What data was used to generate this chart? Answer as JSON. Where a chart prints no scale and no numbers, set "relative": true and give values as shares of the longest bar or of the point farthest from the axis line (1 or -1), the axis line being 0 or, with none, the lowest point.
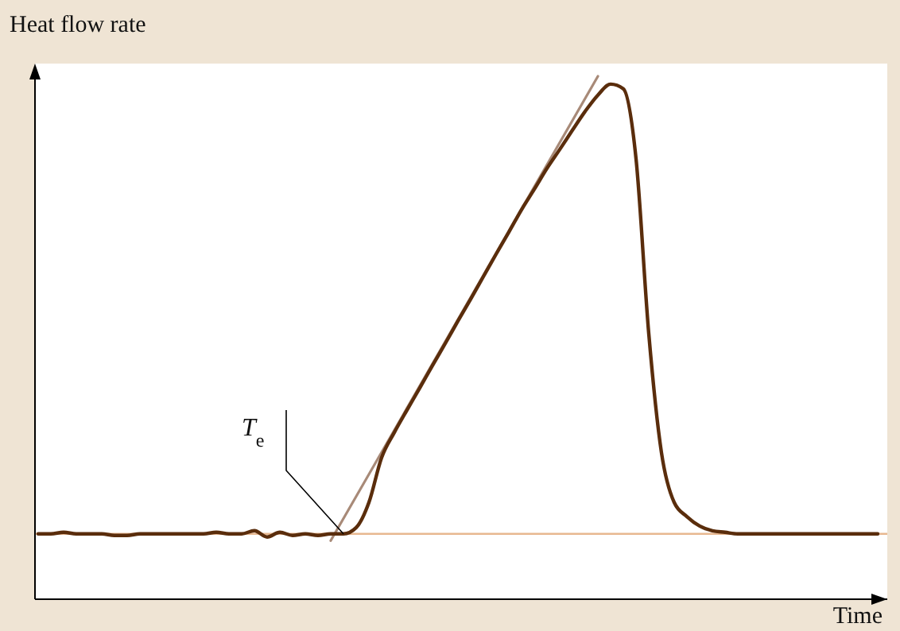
{
  "chart_data": {
    "type": "line",
    "relative": true,
    "xlabel": "Time",
    "ylabel": "Heat flow rate",
    "categories": [
      null,
      null,
      null,
      null,
      null,
      null,
      null,
      null,
      null,
      null,
      null,
      null,
      null,
      null,
      null,
      null,
      null,
      null,
      null,
      null,
      null,
      null,
      null,
      null,
      null,
      null,
      null,
      null,
      null,
      null,
      null,
      null,
      null,
      null,
      null,
      null,
      null,
      null,
      null,
      null,
      null,
      null,
      null,
      null,
      null,
      null,
      null,
      null,
      null,
      null,
      null,
      null,
      null,
      null,
      null,
      null,
      null,
      null,
      null,
      null,
      null,
      null,
      null,
      null,
      null,
      null,
      null
    ],
    "series": [
      {
        "color": "#5a2d0c",
        "values": [
          0.125,
          0.125,
          0.128,
          0.125,
          0.125,
          0.125,
          0.122,
          0.122,
          0.125,
          0.125,
          0.125,
          0.125,
          0.125,
          0.125,
          0.128,
          0.125,
          0.125,
          0.131,
          0.119,
          0.128,
          0.122,
          0.125,
          0.122,
          0.125,
          0.125,
          0.137,
          0.185,
          0.271,
          0.319,
          0.362,
          0.404,
          0.447,
          0.489,
          0.532,
          0.574,
          0.617,
          0.66,
          0.702,
          0.745,
          0.784,
          0.824,
          0.86,
          0.897,
          0.933,
          0.964,
          0.985,
          0.976,
          0.842,
          0.508,
          0.28,
          0.185,
          0.158,
          0.14,
          0.131,
          0.128,
          0.125,
          0.125,
          0.125,
          0.125,
          0.125,
          0.125,
          0.125,
          0.125,
          0.125,
          0.125,
          0.125,
          0.125
        ]
      },
      {
        "type": "line",
        "color": "#a88a78",
        "values": [
          null,
          null,
          null,
          null,
          null,
          null,
          null,
          null,
          null,
          null,
          null,
          null,
          null,
          null,
          null,
          null,
          null,
          null,
          null,
          null,
          null,
          null,
          null,
          0.112,
          null,
          null,
          null,
          null,
          null,
          null,
          null,
          null,
          null,
          null,
          null,
          null,
          null,
          null,
          null,
          null,
          null,
          null,
          null,
          null,
          1,
          null,
          null,
          null,
          null,
          null,
          null,
          null,
          null,
          null,
          null,
          null,
          null,
          null,
          null,
          null,
          null,
          null,
          null,
          null,
          null,
          null,
          null
        ]
      }
    ],
    "ref_lines": [
      {
        "axis": "y",
        "value": 0.125,
        "color": "#e8b890"
      }
    ],
    "annotations": [
      "T$_{e}$"
    ],
    "line_style": "solid"
  }
}
